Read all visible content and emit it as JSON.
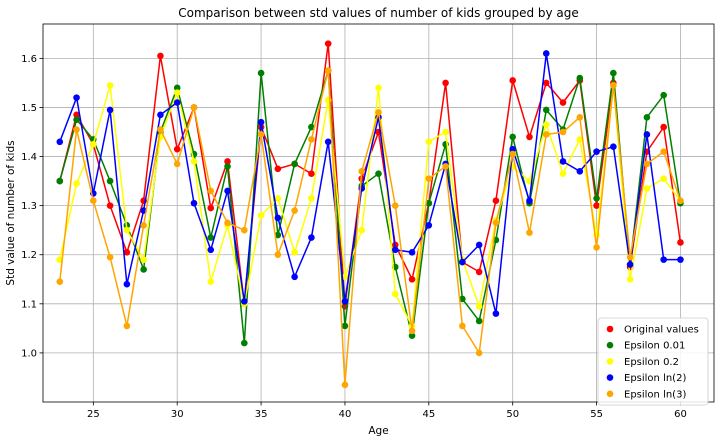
{
  "chart_data": {
    "type": "line",
    "title": "Comparison between std values of number of kids grouped by age",
    "xlabel": "Age",
    "ylabel": "Std value of number of kids",
    "xlim": [
      22,
      62
    ],
    "ylim": [
      0.9,
      1.67
    ],
    "xticks": [
      25,
      30,
      35,
      40,
      45,
      50,
      55,
      60
    ],
    "yticks": [
      1.0,
      1.1,
      1.2,
      1.3,
      1.4,
      1.5,
      1.6
    ],
    "ytick_labels": [
      "1.0",
      "1.1",
      "1.2",
      "1.3",
      "1.4",
      "1.5",
      "1.6"
    ],
    "grid": true,
    "legend_position": "lower-right",
    "x": [
      23,
      24,
      25,
      26,
      27,
      28,
      29,
      30,
      31,
      32,
      33,
      34,
      35,
      36,
      37,
      38,
      39,
      40,
      41,
      42,
      43,
      44,
      45,
      46,
      47,
      48,
      49,
      50,
      51,
      52,
      53,
      54,
      55,
      56,
      57,
      58,
      59,
      60
    ],
    "series": [
      {
        "name": "Original values",
        "color": "#ff0000",
        "values": [
          1.35,
          1.485,
          1.425,
          1.3,
          1.205,
          1.31,
          1.605,
          1.415,
          1.5,
          1.295,
          1.39,
          1.1,
          1.46,
          1.375,
          1.385,
          1.365,
          1.63,
          1.095,
          1.355,
          1.45,
          1.22,
          1.15,
          1.305,
          1.55,
          1.185,
          1.165,
          1.31,
          1.555,
          1.44,
          1.55,
          1.51,
          1.555,
          1.3,
          1.55,
          1.175,
          1.41,
          1.46,
          1.225
        ]
      },
      {
        "name": "Epsilon 0.01",
        "color": "#008000",
        "values": [
          1.35,
          1.475,
          1.435,
          1.35,
          1.26,
          1.17,
          1.45,
          1.54,
          1.405,
          1.235,
          1.38,
          1.02,
          1.57,
          1.24,
          1.385,
          1.46,
          1.575,
          1.055,
          1.34,
          1.365,
          1.175,
          1.035,
          1.305,
          1.425,
          1.11,
          1.065,
          1.23,
          1.44,
          1.305,
          1.495,
          1.455,
          1.56,
          1.315,
          1.57,
          1.18,
          1.48,
          1.525,
          1.305
        ]
      },
      {
        "name": "Epsilon 0.2",
        "color": "#ffff00",
        "values": [
          1.19,
          1.345,
          1.425,
          1.545,
          1.25,
          1.19,
          1.44,
          1.53,
          1.39,
          1.145,
          1.26,
          1.1,
          1.28,
          1.315,
          1.205,
          1.315,
          1.515,
          1.155,
          1.25,
          1.54,
          1.12,
          1.055,
          1.43,
          1.45,
          1.19,
          1.095,
          1.27,
          1.38,
          1.35,
          1.465,
          1.365,
          1.435,
          1.24,
          1.545,
          1.15,
          1.335,
          1.355,
          1.31
        ]
      },
      {
        "name": "Epsilon ln(2)",
        "color": "#0000ff",
        "values": [
          1.43,
          1.52,
          1.325,
          1.495,
          1.14,
          1.29,
          1.485,
          1.51,
          1.305,
          1.21,
          1.33,
          1.105,
          1.47,
          1.275,
          1.155,
          1.235,
          1.43,
          1.105,
          1.335,
          1.48,
          1.21,
          1.205,
          1.26,
          1.385,
          1.185,
          1.22,
          1.08,
          1.415,
          1.31,
          1.61,
          1.39,
          1.37,
          1.41,
          1.42,
          1.18,
          1.445,
          1.19,
          1.19
        ]
      },
      {
        "name": "Epsilon ln(3)",
        "color": "#ffa500",
        "values": [
          1.145,
          1.455,
          1.31,
          1.195,
          1.055,
          1.26,
          1.455,
          1.385,
          1.5,
          1.33,
          1.265,
          1.25,
          1.445,
          1.2,
          1.29,
          1.435,
          1.575,
          0.935,
          1.37,
          1.49,
          1.3,
          1.045,
          1.355,
          1.38,
          1.055,
          1.0,
          1.265,
          1.405,
          1.245,
          1.445,
          1.45,
          1.48,
          1.215,
          1.545,
          1.195,
          1.385,
          1.41,
          1.31
        ]
      }
    ]
  }
}
